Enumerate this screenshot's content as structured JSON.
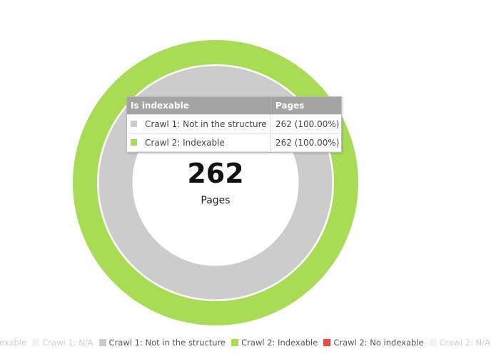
{
  "chart_data": {
    "type": "donut",
    "center_value": 262,
    "center_label": "Pages",
    "series": [
      {
        "name": "Crawl 2: Indexable",
        "color": "#a9dc55",
        "values": [
          262
        ],
        "value_labels": [
          "262 (100.00%)"
        ]
      },
      {
        "name": "Crawl 1: Not in the structure",
        "color": "#cccccc",
        "values": [
          262
        ],
        "value_labels": [
          "262 (100.00%)"
        ]
      }
    ],
    "tooltip": {
      "headers": [
        "Is indexable",
        "Pages"
      ]
    },
    "legend": [
      {
        "name": "exable",
        "color": "#eef3f7",
        "faded": true
      },
      {
        "name": "Crawl 1: N/A",
        "color": "#eef3f7",
        "faded": true
      },
      {
        "name": "Crawl 1: Not in the structure",
        "color": "#cccccc",
        "faded": false
      },
      {
        "name": "Crawl 2: Indexable",
        "color": "#a9dc55",
        "faded": false
      },
      {
        "name": "Crawl 2: No indexable",
        "color": "#f04848",
        "faded": false
      },
      {
        "name": "Crawl 2: N/A",
        "color": "#eef3f7",
        "faded": true
      }
    ]
  }
}
